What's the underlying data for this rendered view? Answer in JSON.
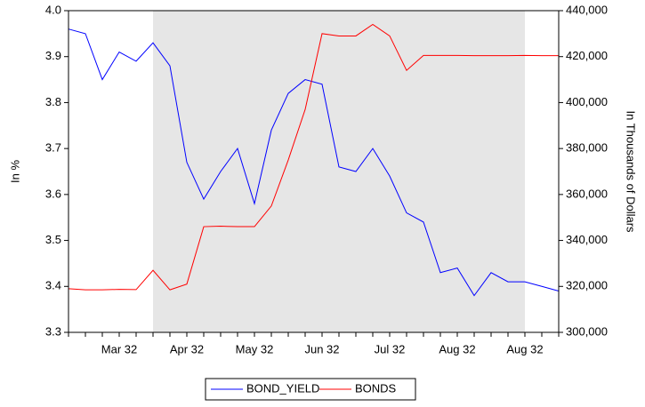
{
  "chart_data": {
    "type": "line",
    "categories": [
      null,
      null,
      null,
      "Mar 32",
      null,
      null,
      null,
      "Apr 32",
      null,
      null,
      null,
      "May 32",
      null,
      null,
      null,
      "Jun 32",
      null,
      null,
      null,
      "Jul 32",
      null,
      null,
      null,
      "Aug 32",
      null,
      null,
      null,
      "Aug 32",
      null,
      null
    ],
    "shade": [
      5,
      27
    ],
    "series": [
      {
        "name": "BOND_YIELD",
        "color": "#0000ff",
        "axis": "y",
        "values": [
          3.96,
          3.95,
          3.85,
          3.91,
          3.89,
          3.93,
          3.88,
          3.67,
          3.59,
          3.65,
          3.7,
          3.58,
          3.74,
          3.82,
          3.85,
          3.84,
          3.66,
          3.65,
          3.7,
          3.64,
          3.56,
          3.54,
          3.43,
          3.44,
          3.38,
          3.43,
          3.41,
          3.41,
          3.4,
          3.39
        ]
      },
      {
        "name": "BONDS",
        "color": "#ff0000",
        "axis": "y2",
        "values": [
          319000,
          318500,
          318500,
          318700,
          318600,
          327000,
          318500,
          321000,
          346000,
          346200,
          346000,
          346000,
          355000,
          375000,
          397000,
          430000,
          429000,
          429000,
          434000,
          429000,
          414000,
          420500,
          420500,
          420500,
          420400,
          420400,
          420400,
          420500,
          420400,
          420400
        ]
      }
    ],
    "ylabel": "In %",
    "y2label": "In Thousands of Dollars",
    "ylim": [
      3.3,
      4.0
    ],
    "yticks": [
      3.3,
      3.4,
      3.5,
      3.6,
      3.7,
      3.8,
      3.9,
      {
        "value": 4.0,
        "label": "4.0"
      }
    ],
    "y2lim": [
      300000,
      440000
    ],
    "y2ticks": [
      {
        "value": 300000,
        "label": "300,000"
      },
      {
        "value": 320000,
        "label": "320,000"
      },
      {
        "value": 340000,
        "label": "340,000"
      },
      {
        "value": 360000,
        "label": "360,000"
      },
      {
        "value": 380000,
        "label": "380,000"
      },
      {
        "value": 400000,
        "label": "400,000"
      },
      {
        "value": 420000,
        "label": "420,000"
      },
      {
        "value": 440000,
        "label": "440,000"
      }
    ]
  }
}
